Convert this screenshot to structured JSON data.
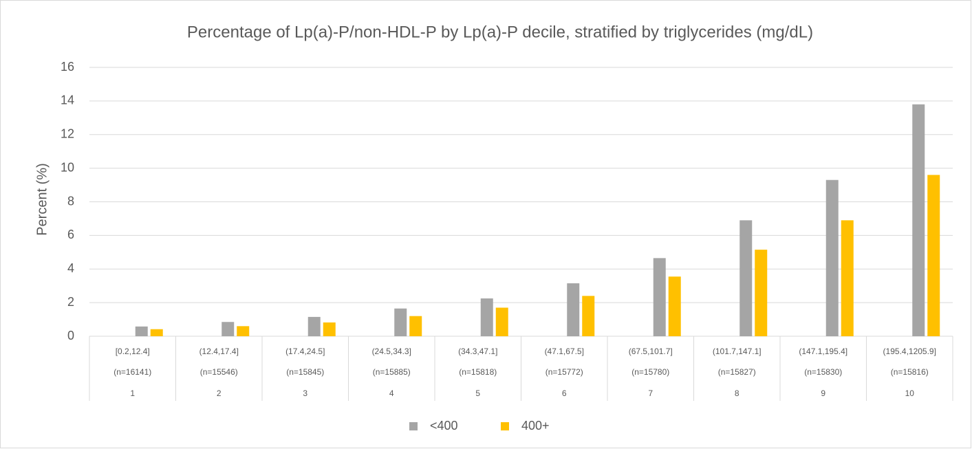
{
  "chart_data": {
    "type": "bar",
    "title": "Percentage of Lp(a)-P/non-HDL-P by Lp(a)-P decile, stratified by triglycerides (mg/dL)",
    "y_label": "Percent (%)",
    "categories": [
      "1",
      "2",
      "3",
      "4",
      "5",
      "6",
      "7",
      "8",
      "9",
      "10"
    ],
    "category_ranges": [
      "[0.2,12.4]",
      "(12.4,17.4]",
      "(17.4,24.5]",
      "(24.5,34.3]",
      "(34.3,47.1]",
      "(47.1,67.5]",
      "(67.5,101.7]",
      "(101.7,147.1]",
      "(147.1,195.4]",
      "(195.4,1205.9]"
    ],
    "category_counts": [
      "(n=16141)",
      "(n=15546)",
      "(n=15845)",
      "(n=15885)",
      "(n=15818)",
      "(n=15772)",
      "(n=15780)",
      "(n=15827)",
      "(n=15830)",
      "(n=15816)"
    ],
    "series": [
      {
        "name": "<400",
        "color": "#a5a5a5",
        "values": [
          0.58,
          0.85,
          1.15,
          1.65,
          2.25,
          3.15,
          4.65,
          6.9,
          9.3,
          13.8
        ]
      },
      {
        "name": "400+",
        "color": "#ffc000",
        "values": [
          0.42,
          0.6,
          0.82,
          1.2,
          1.7,
          2.4,
          3.55,
          5.15,
          6.9,
          9.6
        ]
      }
    ],
    "ylim": [
      0,
      16
    ],
    "yticks": [
      0,
      2,
      4,
      6,
      8,
      10,
      12,
      14,
      16
    ],
    "grid": true,
    "legend": "bottom"
  }
}
